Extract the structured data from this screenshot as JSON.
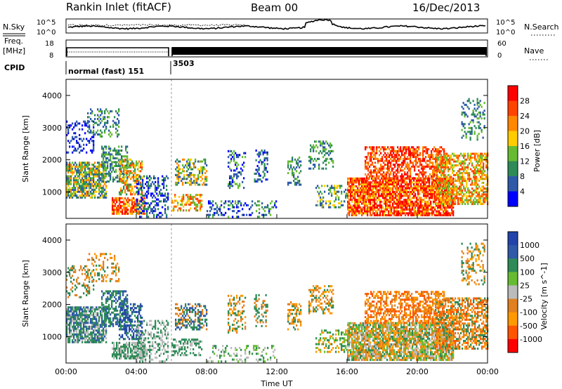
{
  "header": {
    "station": "Rankin Inlet (fitACF)",
    "beam": "Beam 00",
    "date": "16/Dec/2013"
  },
  "noise_panel": {
    "left_label": "N.Sky",
    "right_label": "N.Search",
    "tick_top": "10^5",
    "tick_bottom": "10^0",
    "right_tick_top": "10^5",
    "right_tick_bottom": "10^0"
  },
  "freq_panel": {
    "left_label_line1": "Freq.",
    "left_label_line2": "[MHz]",
    "tick_top": "18",
    "tick_bottom": "8",
    "right_label": "Nave",
    "right_tick_top": "60",
    "right_tick_bottom": "0"
  },
  "cpid": {
    "label": "CPID",
    "segment1": "normal (fast) 151",
    "segment2": "3503"
  },
  "colors": {
    "power": [
      "#0000ff",
      "#2e5aa8",
      "#2e8b57",
      "#66bb33",
      "#ffcc00",
      "#ff8800",
      "#ff4400",
      "#ff0000"
    ],
    "velocity": [
      "#ff0000",
      "#ff5500",
      "#ff9900",
      "#e08020",
      "#bbbbbb",
      "#66bb33",
      "#2e8b57",
      "#2e5aa8",
      "#2244aa"
    ]
  },
  "chart_data": [
    {
      "type": "heatmap",
      "quantity": "Power",
      "xlabel": "",
      "ylabel": "Slant Range [km]",
      "x_ticks": [
        "00:00",
        "04:00",
        "08:00",
        "12:00",
        "16:00",
        "20:00",
        "00:00"
      ],
      "y_ticks": [
        1000,
        2000,
        3000,
        4000
      ],
      "ylim": [
        180,
        4500
      ],
      "colorbar": {
        "label": "Power [dB]",
        "ticks": [
          4,
          8,
          12,
          16,
          20,
          24,
          28
        ]
      }
    },
    {
      "type": "heatmap",
      "quantity": "Velocity",
      "xlabel": "Time UT",
      "ylabel": "Slant Range [km]",
      "x_ticks": [
        "00:00",
        "04:00",
        "08:00",
        "12:00",
        "16:00",
        "20:00",
        "00:00"
      ],
      "y_ticks": [
        1000,
        2000,
        3000,
        4000
      ],
      "ylim": [
        180,
        4500
      ],
      "colorbar": {
        "label": "Velocity [m s^-1]",
        "ticks": [
          "1000",
          "500",
          "100",
          "25",
          "-25",
          "-100",
          "-500",
          "-1000"
        ]
      }
    }
  ]
}
